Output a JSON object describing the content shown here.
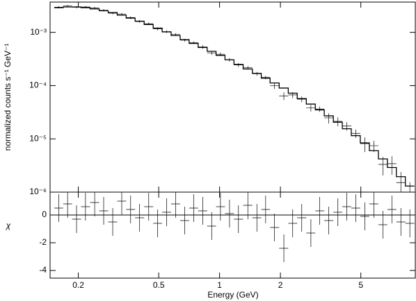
{
  "chart_data": {
    "type": "spectrum",
    "xlabel": "Energy (GeV)",
    "ylabel": "normalized counts s⁻¹ GeV⁻¹",
    "y2label": "χ",
    "x": [
      0.16,
      0.177,
      0.196,
      0.217,
      0.241,
      0.267,
      0.296,
      0.328,
      0.363,
      0.402,
      0.446,
      0.494,
      0.547,
      0.606,
      0.672,
      0.744,
      0.825,
      0.914,
      1.01,
      1.12,
      1.24,
      1.38,
      1.53,
      1.69,
      1.87,
      2.08,
      2.3,
      2.55,
      2.83,
      3.13,
      3.47,
      3.85,
      4.26,
      4.72,
      5.23,
      5.8,
      6.43,
      7.12,
      7.89,
      8.74
    ],
    "values": [
      0.00297,
      0.00312,
      0.00296,
      0.00299,
      0.00287,
      0.00259,
      0.00229,
      0.00221,
      0.00189,
      0.0016,
      0.00145,
      0.00116,
      0.00103,
      0.000912,
      0.000712,
      0.000639,
      0.000532,
      0.000412,
      0.000388,
      0.000307,
      0.000244,
      0.000216,
      0.000167,
      0.000142,
      9.99e-05,
      6.41e-05,
      6.68e-05,
      5.56e-05,
      3.8e-05,
      3.63e-05,
      2.48e-05,
      2.13e-05,
      1.74e-05,
      1.27e-05,
      8.15e-06,
      7.44e-06,
      3.32e-06,
      3.42e-06,
      1.51e-06,
      9.5e-07
    ],
    "errors": [
      0.000145,
      0.00015,
      0.00015,
      0.000145,
      0.000138,
      0.000128,
      0.000118,
      0.000105,
      0.000111,
      9.7e-05,
      8.4e-05,
      7.2e-05,
      6.1e-05,
      5.2e-05,
      4.4e-05,
      3.7e-05,
      4.2e-05,
      3.5e-05,
      3e-05,
      2.4e-05,
      2e-05,
      1.64e-05,
      1.36e-05,
      1.1e-05,
      1.34e-05,
      1.08e-05,
      8.6e-06,
      6.8e-06,
      5.4e-06,
      4.2e-06,
      5.4e-06,
      4.1e-06,
      3.1e-06,
      2.3e-06,
      2.5e-06,
      1.8e-06,
      1.26e-06,
      1.3e-06,
      8.8e-07,
      5.9e-07
    ],
    "model": [
      0.0029,
      0.003,
      0.003,
      0.0029,
      0.00275,
      0.00255,
      0.00235,
      0.0021,
      0.00185,
      0.00162,
      0.0014,
      0.0012,
      0.00102,
      0.00087,
      0.00073,
      0.00062,
      0.00052,
      0.00044,
      0.00037,
      0.000305,
      0.00025,
      0.000205,
      0.00017,
      0.000138,
      0.000112,
      9e-05,
      7.2e-05,
      5.7e-05,
      4.5e-05,
      3.5e-05,
      2.7e-05,
      2.05e-05,
      1.55e-05,
      1.15e-05,
      8.4e-06,
      6e-06,
      4.2e-06,
      2.9e-06,
      1.95e-06,
      1.3e-06
    ],
    "residuals": [
      0.5,
      0.8,
      -0.3,
      0.6,
      0.9,
      0.3,
      -0.5,
      1.0,
      0.4,
      -0.2,
      0.6,
      -0.6,
      0.2,
      0.8,
      -0.4,
      0.5,
      0.3,
      -0.8,
      0.6,
      0.1,
      -0.3,
      0.7,
      -0.2,
      0.4,
      -0.9,
      -2.4,
      -0.6,
      -0.2,
      -1.3,
      0.3,
      -0.4,
      0.2,
      0.6,
      0.5,
      -0.1,
      0.8,
      -0.7,
      0.4,
      -0.5,
      -0.6
    ],
    "residual_errors": [
      1,
      1,
      1,
      1,
      1,
      1,
      1,
      1,
      1,
      1,
      1,
      1,
      1,
      1,
      1,
      1,
      1,
      1,
      1,
      1,
      1,
      1,
      1,
      1,
      1,
      1,
      1,
      1,
      1,
      1,
      1,
      1,
      1,
      1,
      1,
      1,
      1,
      1,
      1,
      1
    ],
    "xlog": true,
    "ylog": true,
    "color": "#000000",
    "xlim": [
      0.145,
      9.3
    ],
    "xticks": [
      0.2,
      0.5,
      1,
      2,
      5
    ],
    "ylim": [
      1e-06,
      0.0037
    ],
    "yticks": [
      {
        "value": 1e-06,
        "label": "10⁻⁶"
      },
      {
        "value": 1e-05,
        "label": "10⁻⁵"
      },
      {
        "value": 0.0001,
        "label": "10⁻⁴"
      },
      {
        "value": 0.001,
        "label": "10⁻³"
      }
    ],
    "y2lim": [
      -4.55,
      1.65
    ],
    "y2ticks": [
      -4,
      -2,
      0
    ]
  }
}
